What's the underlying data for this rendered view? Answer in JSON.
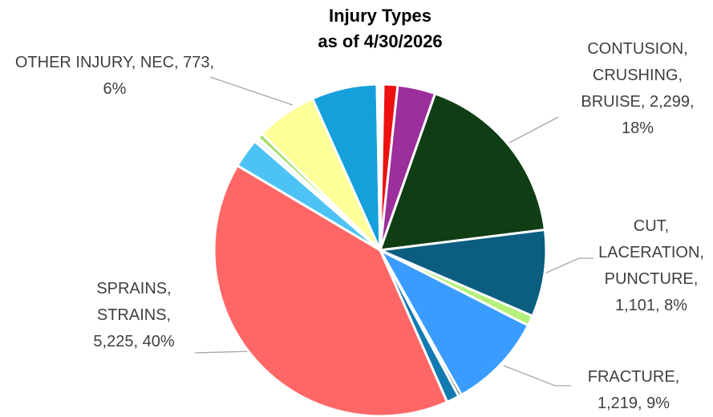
{
  "chart_data": {
    "type": "pie",
    "title": [
      "Injury Types",
      "as of 4/30/2026"
    ],
    "categories": [
      null,
      null,
      null,
      "CONTUSION, CRUSHING, BRUISE",
      "CUT, LACERATION, PUNCTURE",
      null,
      "FRACTURE",
      null,
      null,
      "SPRAINS, STRAINS",
      null,
      null,
      null,
      "OTHER INJURY, NEC",
      null,
      null
    ],
    "values": [
      40,
      180,
      480,
      2299,
      1101,
      130,
      1219,
      40,
      160,
      5225,
      373,
      60,
      70,
      773,
      830,
      40
    ],
    "value_labels": [
      null,
      null,
      null,
      "2,299",
      "1,101",
      null,
      "1,219",
      null,
      null,
      "5,225",
      null,
      null,
      null,
      "773",
      null,
      null
    ],
    "percent_labels": [
      null,
      null,
      null,
      "18%",
      "8%",
      null,
      "9%",
      null,
      null,
      "40%",
      null,
      null,
      null,
      "6%",
      null,
      null
    ],
    "label_separator": ", ",
    "colors": [
      "#ececec",
      "#ee1111",
      "#9c2f9c",
      "#0f3d14",
      "#0b5e80",
      "#b5f07a",
      "#3b9cff",
      "#1f4d1f",
      "#137ab0",
      "#ff6666",
      "#4dc3f5",
      "#eef4ff",
      "#a8e070",
      "#ffff99",
      "#15a0dc",
      "#f0f0f0"
    ]
  }
}
